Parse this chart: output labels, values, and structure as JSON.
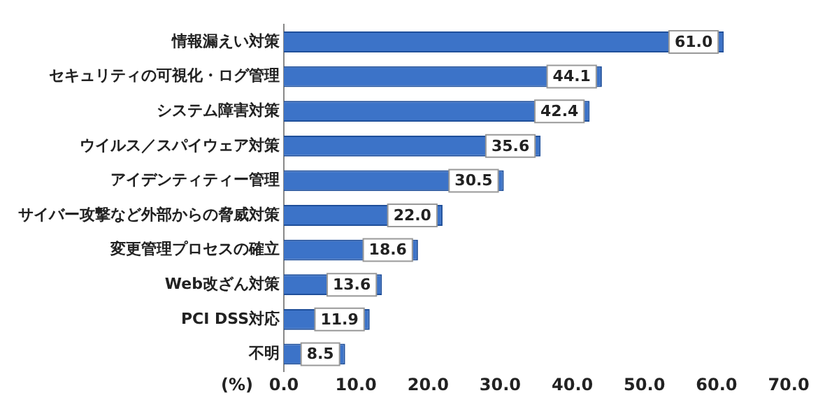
{
  "chart_data": {
    "type": "bar",
    "orientation": "horizontal",
    "xlabel": "(%)",
    "categories": [
      "情報漏えい対策",
      "セキュリティの可視化・ログ管理",
      "システム障害対策",
      "ウイルス／スパイウェア対策",
      "アイデンティティー管理",
      "サイバー攻撃など外部からの脅威対策",
      "変更管理プロセスの確立",
      "Web改ざん対策",
      "PCI DSS対応",
      "不明"
    ],
    "values": [
      61.0,
      44.1,
      42.4,
      35.6,
      30.5,
      22.0,
      18.6,
      13.6,
      11.9,
      8.5
    ],
    "color": "#3c73c8",
    "xlim": [
      0,
      70
    ],
    "xticks": [
      {
        "value": 0,
        "label": "0.0"
      },
      {
        "value": 10,
        "label": "10.0"
      },
      {
        "value": 20,
        "label": "20.0"
      },
      {
        "value": 30,
        "label": "30.0"
      },
      {
        "value": 40,
        "label": "40.0"
      },
      {
        "value": 50,
        "label": "50.0"
      },
      {
        "value": 60,
        "label": "60.0"
      },
      {
        "value": 70,
        "label": "70.0"
      }
    ],
    "value_labels": [
      "61.0",
      "44.1",
      "42.4",
      "35.6",
      "30.5",
      "22.0",
      "18.6",
      "13.6",
      "11.9",
      "8.5"
    ],
    "grid": false,
    "legend": false
  }
}
